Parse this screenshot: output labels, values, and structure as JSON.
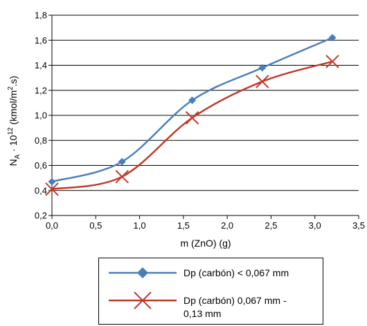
{
  "chart_data": {
    "type": "line",
    "xlabel": "m (ZnO) (g)",
    "ylabel": "N",
    "ylabel_subscript": "A",
    "ylabel_mid": " · 10",
    "ylabel_superscript": "12",
    "ylabel_unit_start": " (kmol/m",
    "ylabel_unit_superscript": "2",
    "ylabel_unit_end": ".s)",
    "xlim": [
      0,
      3.5
    ],
    "ylim": [
      0.2,
      1.8
    ],
    "x_ticks": [
      "0,0",
      "0,5",
      "1,0",
      "1,5",
      "2,0",
      "2,5",
      "3,0",
      "3,5"
    ],
    "x_tick_values": [
      0,
      0.5,
      1.0,
      1.5,
      2.0,
      2.5,
      3.0,
      3.5
    ],
    "y_ticks": [
      "0,2",
      "0,4",
      "0,6",
      "0,8",
      "1,0",
      "1,2",
      "1,4",
      "1,6",
      "1,8"
    ],
    "y_tick_values": [
      0.2,
      0.4,
      0.6,
      0.8,
      1.0,
      1.2,
      1.4,
      1.6,
      1.8
    ],
    "grid": "horizontal",
    "legend_position": "bottom",
    "series": [
      {
        "name": "Dp (carbón) < 0,067 mm",
        "color": "#4a7ebb",
        "marker": "diamond",
        "x": [
          0.0,
          0.8,
          1.6,
          2.4,
          3.2
        ],
        "y": [
          0.47,
          0.63,
          1.12,
          1.38,
          1.62
        ]
      },
      {
        "name": "Dp (carbón) 0,067 mm - 0,13 mm",
        "name_lines": [
          "Dp (carbón) 0,067 mm -",
          "0,13 mm"
        ],
        "color": "#c0392b",
        "marker": "x",
        "x": [
          0.0,
          0.8,
          1.6,
          2.4,
          3.2
        ],
        "y": [
          0.41,
          0.51,
          0.98,
          1.27,
          1.43
        ]
      }
    ]
  }
}
